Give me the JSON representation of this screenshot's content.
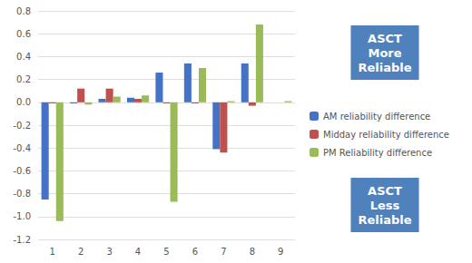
{
  "chart_data": {
    "type": "bar",
    "categories": [
      "1",
      "2",
      "3",
      "4",
      "5",
      "6",
      "7",
      "8",
      "9"
    ],
    "series": [
      {
        "name": "AM reliability difference",
        "color": "#4472C4",
        "values": [
          -0.85,
          -0.01,
          0.03,
          0.04,
          0.26,
          0.34,
          -0.41,
          0.34,
          0.0
        ]
      },
      {
        "name": "Midday reliability difference",
        "color": "#C0504D",
        "values": [
          -0.01,
          0.12,
          0.12,
          0.03,
          -0.01,
          -0.01,
          -0.44,
          -0.03,
          0.0
        ]
      },
      {
        "name": "PM Reliability difference",
        "color": "#9BBB59",
        "values": [
          -1.04,
          -0.02,
          0.05,
          0.06,
          -0.87,
          0.3,
          0.01,
          0.68,
          0.01
        ]
      }
    ],
    "ylim": [
      -1.2,
      0.8
    ],
    "yticks": [
      -1.2,
      {
        "value": -1.0,
        "label": "-1.0"
      },
      -0.8,
      -0.6,
      -0.4,
      -0.2,
      {
        "value": 0.0,
        "label": "0.0"
      },
      0.2,
      0.4,
      0.6,
      0.8
    ],
    "grid": true,
    "legend": "right",
    "annotations": [
      {
        "text": "ASCT\nMore\nReliable",
        "color": "#4F81BD"
      },
      {
        "text": "ASCT\nLess\nReliable",
        "color": "#4F81BD"
      }
    ]
  }
}
